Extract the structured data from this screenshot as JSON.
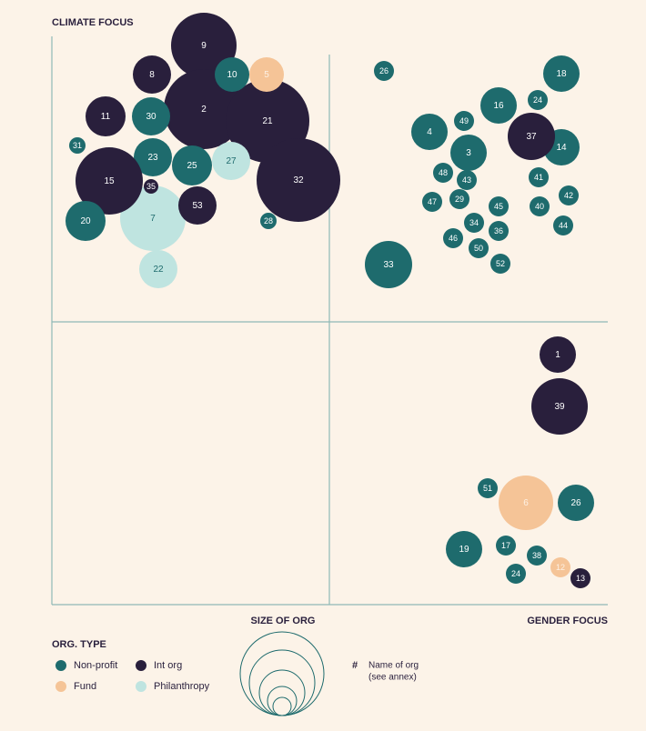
{
  "y_axis_label": "CLIMATE FOCUS",
  "x_axis_label": "SIZE OF ORG",
  "x_right_label": "GENDER FOCUS",
  "legend": {
    "title": "ORG. TYPE",
    "items": [
      {
        "label": "Non-profit",
        "color": "#1e6b6d"
      },
      {
        "label": "Int org",
        "color": "#291f3c"
      },
      {
        "label": "Fund",
        "color": "#f5c497"
      },
      {
        "label": "Philanthropy",
        "color": "#bfe4e0"
      }
    ]
  },
  "key": {
    "symbol": "#",
    "lines": [
      "Name of org",
      "(see annex)"
    ]
  },
  "nodes": [
    {
      "label": "9",
      "type": 1
    },
    {
      "label": "2",
      "type": 1
    },
    {
      "label": "21",
      "type": 1
    },
    {
      "label": "10",
      "type": 0
    },
    {
      "label": "5",
      "type": 2
    },
    {
      "label": "8",
      "type": 1
    },
    {
      "label": "11",
      "type": 1
    },
    {
      "label": "30",
      "type": 0
    },
    {
      "label": "31",
      "type": 0
    },
    {
      "label": "23",
      "type": 0
    },
    {
      "label": "25",
      "type": 0
    },
    {
      "label": "27",
      "type": 3
    },
    {
      "label": "32",
      "type": 1
    },
    {
      "label": "7",
      "type": 3
    },
    {
      "label": "15",
      "type": 1
    },
    {
      "label": "35",
      "type": 1
    },
    {
      "label": "20",
      "type": 0
    },
    {
      "label": "53",
      "type": 1
    },
    {
      "label": "28",
      "type": 0
    },
    {
      "label": "22",
      "type": 3
    },
    {
      "label": "26",
      "type": 0
    },
    {
      "label": "18",
      "type": 0
    },
    {
      "label": "24",
      "type": 0
    },
    {
      "label": "16",
      "type": 0
    },
    {
      "label": "49",
      "type": 0
    },
    {
      "label": "4",
      "type": 0
    },
    {
      "label": "14",
      "type": 0
    },
    {
      "label": "37",
      "type": 1
    },
    {
      "label": "3",
      "type": 0
    },
    {
      "label": "48",
      "type": 0
    },
    {
      "label": "43",
      "type": 0
    },
    {
      "label": "41",
      "type": 0
    },
    {
      "label": "47",
      "type": 0
    },
    {
      "label": "29",
      "type": 0
    },
    {
      "label": "45",
      "type": 0
    },
    {
      "label": "40",
      "type": 0
    },
    {
      "label": "42",
      "type": 0
    },
    {
      "label": "34",
      "type": 0
    },
    {
      "label": "36",
      "type": 0
    },
    {
      "label": "44",
      "type": 0
    },
    {
      "label": "46",
      "type": 0
    },
    {
      "label": "50",
      "type": 0
    },
    {
      "label": "33",
      "type": 0
    },
    {
      "label": "52",
      "type": 0
    },
    {
      "label": "1",
      "type": 1
    },
    {
      "label": "39",
      "type": 1
    },
    {
      "label": "51",
      "type": 0
    },
    {
      "label": "6",
      "type": 2
    },
    {
      "label": "26",
      "type": 0
    },
    {
      "label": "19",
      "type": 0
    },
    {
      "label": "17",
      "type": 0
    },
    {
      "label": "38",
      "type": 0
    },
    {
      "label": "24",
      "type": 0
    },
    {
      "label": "12",
      "type": 2
    },
    {
      "label": "13",
      "type": 1
    }
  ]
}
